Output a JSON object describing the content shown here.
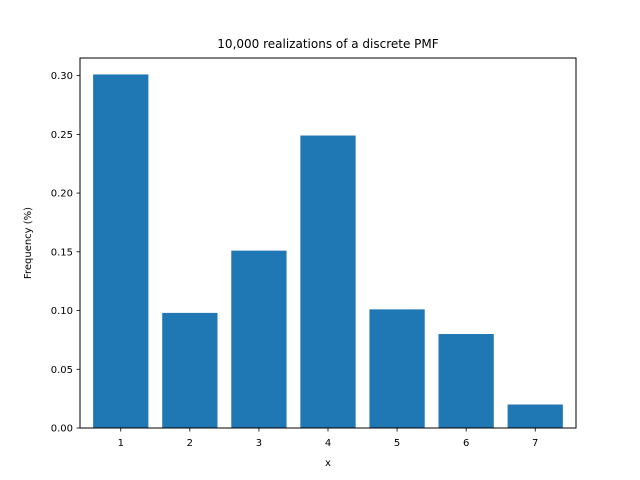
{
  "chart_data": {
    "type": "bar",
    "title": "10,000 realizations of a discrete PMF",
    "xlabel": "x",
    "ylabel": "Frequency (%)",
    "categories": [
      "1",
      "2",
      "3",
      "4",
      "5",
      "6",
      "7"
    ],
    "values": [
      0.301,
      0.098,
      0.151,
      0.249,
      0.101,
      0.08,
      0.02
    ],
    "ylim": [
      0,
      0.315
    ],
    "yticks": [
      0.0,
      0.05,
      0.1,
      0.15,
      0.2,
      0.25,
      0.3
    ],
    "ytick_labels": [
      "0.00",
      "0.05",
      "0.10",
      "0.15",
      "0.20",
      "0.25",
      "0.30"
    ],
    "grid": false,
    "bar_color": "#1f77b4"
  }
}
